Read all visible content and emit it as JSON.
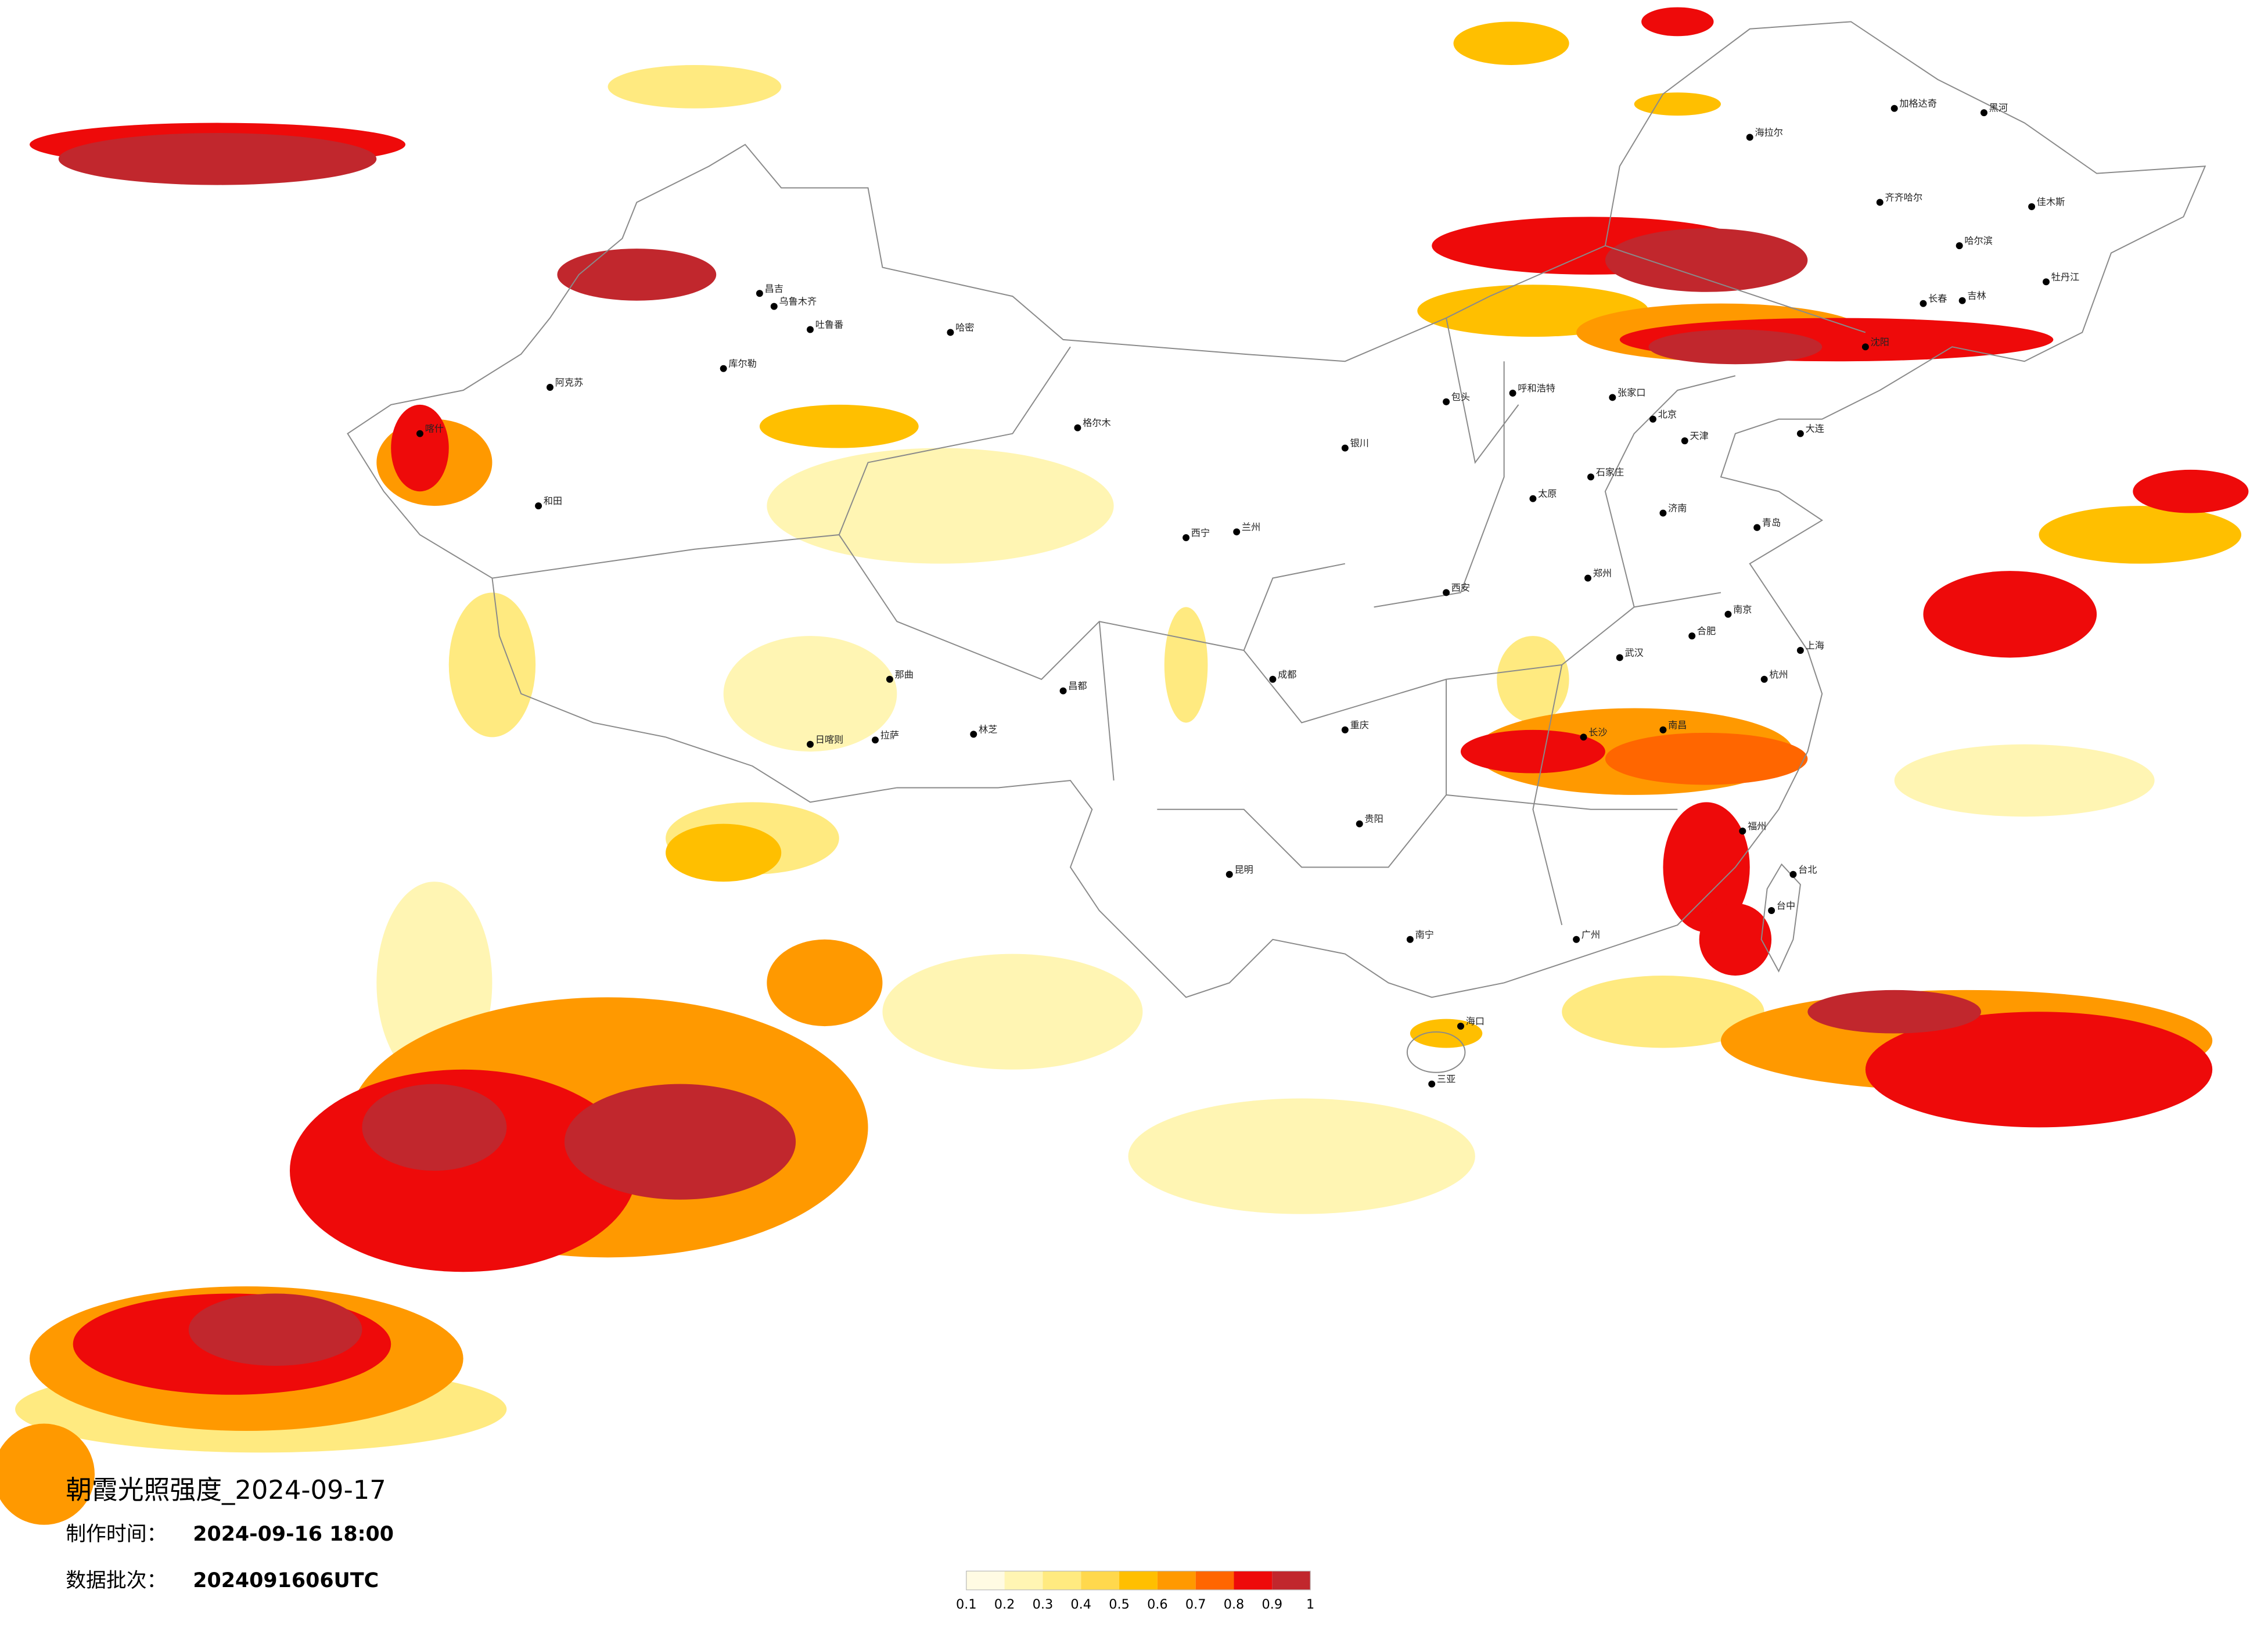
{
  "header": {
    "title": "朝霞光照强度_2024-09-17",
    "made_label": "制作时间：",
    "made_time": "2024-09-16 18:00",
    "batch_label": "数据批次：",
    "batch": "2024091606UTC"
  },
  "legend": {
    "ticks": [
      0.1,
      0.2,
      0.3,
      0.4,
      0.5,
      0.6,
      0.7,
      0.8,
      0.9,
      1
    ],
    "colors": [
      "#fffbe3",
      "#fff5b3",
      "#ffea80",
      "#ffd84d",
      "#ffbf00",
      "#ff9900",
      "#ff6600",
      "#ee0a0a",
      "#c1272d"
    ]
  },
  "cities": [
    "海拉尔",
    "加格达奇",
    "黑河",
    "齐齐哈尔",
    "哈尔滨",
    "佳木斯",
    "牡丹江",
    "长春",
    "吉林",
    "沈阳",
    "大连",
    "呼和浩特",
    "包头",
    "张家口",
    "北京",
    "天津",
    "石家庄",
    "太原",
    "济南",
    "青岛",
    "郑州",
    "西安",
    "银川",
    "兰州",
    "西宁",
    "格尔木",
    "乌鲁木齐",
    "昌吉",
    "吐鲁番",
    "哈密",
    "库尔勒",
    "阿克苏",
    "喀什",
    "和田",
    "那曲",
    "日喀则",
    "拉萨",
    "林芝",
    "昌都",
    "成都",
    "重庆",
    "贵阳",
    "昆明",
    "南宁",
    "广州",
    "海口",
    "三亚",
    "武汉",
    "长沙",
    "南昌",
    "合肥",
    "南京",
    "上海",
    "杭州",
    "福州",
    "台北",
    "台中"
  ]
}
